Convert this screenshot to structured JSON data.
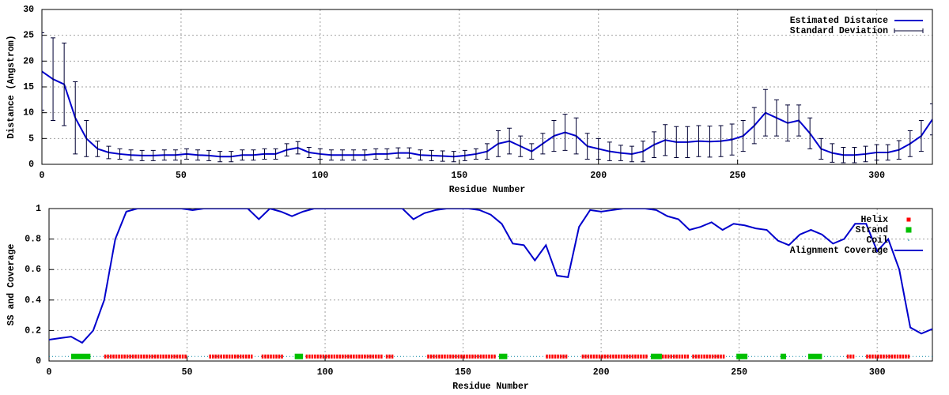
{
  "chart_data": [
    {
      "type": "line",
      "xlabel": "Residue Number",
      "ylabel": "Distance (Angstrom)",
      "xlim": [
        0,
        320
      ],
      "ylim": [
        0,
        30
      ],
      "xticks": [
        0,
        50,
        100,
        150,
        200,
        250,
        300
      ],
      "yticks": [
        0,
        5,
        10,
        15,
        20,
        25,
        30
      ],
      "grid": true,
      "legend": "top right",
      "x": [
        0,
        4,
        8,
        12,
        16,
        20,
        24,
        28,
        32,
        36,
        40,
        44,
        48,
        52,
        56,
        60,
        64,
        68,
        72,
        76,
        80,
        84,
        88,
        92,
        96,
        100,
        104,
        108,
        112,
        116,
        120,
        124,
        128,
        132,
        136,
        140,
        144,
        148,
        152,
        156,
        160,
        164,
        168,
        172,
        176,
        180,
        184,
        188,
        192,
        196,
        200,
        204,
        208,
        212,
        216,
        220,
        224,
        228,
        232,
        236,
        240,
        244,
        248,
        252,
        256,
        260,
        264,
        268,
        272,
        276,
        280,
        284,
        288,
        292,
        296,
        300,
        304,
        308,
        312,
        316,
        320
      ],
      "series": [
        {
          "name": "Estimated Distance",
          "color": "#0000cc",
          "style": "line",
          "values": [
            18,
            16.5,
            15.5,
            9,
            5,
            3,
            2.3,
            2,
            1.8,
            1.7,
            1.7,
            1.8,
            1.8,
            2,
            1.8,
            1.7,
            1.5,
            1.5,
            1.8,
            1.8,
            2,
            2,
            2.8,
            3.2,
            2.3,
            2,
            1.8,
            1.8,
            1.8,
            1.8,
            2,
            2,
            2.2,
            2.2,
            1.8,
            1.7,
            1.6,
            1.5,
            1.7,
            2,
            2.5,
            4,
            4.5,
            3.5,
            2.5,
            4,
            5.5,
            6.2,
            5.5,
            3.5,
            3,
            2.5,
            2.2,
            2,
            2.5,
            3.8,
            4.7,
            4.3,
            4.3,
            4.5,
            4.4,
            4.5,
            4.8,
            5.5,
            7.5,
            10,
            9,
            8,
            8.5,
            6,
            3,
            2.2,
            1.8,
            1.8,
            2,
            2.3,
            2.3,
            2.8,
            4,
            5.5,
            8.7
          ]
        },
        {
          "name": "Standard Deviation",
          "color": "#000033",
          "style": "errorbars",
          "values": [
            7.5,
            8,
            8,
            7,
            3.5,
            1.5,
            1.2,
            1,
            1,
            1,
            1,
            1,
            1,
            1,
            1,
            1,
            1,
            1,
            1,
            1,
            1,
            1,
            1.2,
            1.2,
            1,
            1,
            1,
            1,
            1,
            1,
            1,
            1,
            1,
            1,
            1,
            1,
            1,
            1,
            1,
            1,
            1.5,
            2.5,
            2.5,
            2,
            1.5,
            2,
            3,
            3.5,
            3.5,
            2.5,
            2,
            1.8,
            1.5,
            1.5,
            2,
            2.5,
            3,
            3,
            3,
            3,
            3,
            3,
            3,
            3,
            3.5,
            4.5,
            3.5,
            3.5,
            3,
            3,
            2,
            1.8,
            1.5,
            1.5,
            1.5,
            1.5,
            1.5,
            1.8,
            2.5,
            3,
            3
          ]
        }
      ]
    },
    {
      "type": "line",
      "xlabel": "Residue Number",
      "ylabel": "SS and Coverage",
      "xlim": [
        0,
        320
      ],
      "ylim": [
        0,
        1
      ],
      "xticks": [
        0,
        50,
        100,
        150,
        200,
        250,
        300
      ],
      "yticks": [
        0,
        0.2,
        0.4,
        0.6,
        0.8,
        1
      ],
      "grid": true,
      "legend": "top right",
      "x": [
        0,
        4,
        8,
        12,
        16,
        20,
        24,
        28,
        32,
        36,
        40,
        44,
        48,
        52,
        56,
        60,
        64,
        68,
        72,
        76,
        80,
        84,
        88,
        92,
        96,
        100,
        104,
        108,
        112,
        116,
        120,
        124,
        128,
        132,
        136,
        140,
        144,
        148,
        152,
        156,
        160,
        164,
        168,
        172,
        176,
        180,
        184,
        188,
        192,
        196,
        200,
        204,
        208,
        212,
        216,
        220,
        224,
        228,
        232,
        236,
        240,
        244,
        248,
        252,
        256,
        260,
        264,
        268,
        272,
        276,
        280,
        284,
        288,
        292,
        296,
        300,
        304,
        308,
        312,
        316,
        320
      ],
      "series": [
        {
          "name": "Helix",
          "color": "#ff0000",
          "style": "points",
          "level": 0.03,
          "ranges": [
            [
              20,
              50
            ],
            [
              58,
              74
            ],
            [
              77,
              85
            ],
            [
              93,
              121
            ],
            [
              122,
              125
            ],
            [
              137,
              162
            ],
            [
              180,
              188
            ],
            [
              193,
              217
            ],
            [
              220,
              232
            ],
            [
              233,
              245
            ],
            [
              289,
              292
            ],
            [
              296,
              312
            ]
          ]
        },
        {
          "name": "Strand",
          "color": "#00c000",
          "style": "squares",
          "level": 0.03,
          "ranges": [
            [
              8,
              15
            ],
            [
              89,
              92
            ],
            [
              163,
              166
            ],
            [
              218,
              222
            ],
            [
              249,
              253
            ],
            [
              265,
              267
            ],
            [
              275,
              280
            ]
          ]
        },
        {
          "name": "Coil",
          "color": "#0080a0",
          "style": "dots",
          "level": 0.03,
          "ranges": [
            [
              0,
              320
            ]
          ]
        },
        {
          "name": "Alignment Coverage",
          "color": "#0000cc",
          "style": "line",
          "values": [
            0.14,
            0.15,
            0.16,
            0.12,
            0.2,
            0.4,
            0.8,
            0.98,
            1,
            1,
            1,
            1,
            1,
            0.99,
            1,
            1,
            1,
            1,
            1,
            0.93,
            1,
            0.98,
            0.95,
            0.98,
            1,
            1,
            1,
            1,
            1,
            1,
            1,
            1,
            1,
            0.93,
            0.97,
            0.99,
            1,
            1,
            1,
            0.99,
            0.96,
            0.9,
            0.77,
            0.76,
            0.66,
            0.76,
            0.56,
            0.55,
            0.88,
            0.99,
            0.98,
            0.99,
            1,
            1,
            1,
            0.99,
            0.95,
            0.93,
            0.86,
            0.88,
            0.91,
            0.86,
            0.9,
            0.89,
            0.87,
            0.86,
            0.79,
            0.76,
            0.83,
            0.86,
            0.83,
            0.77,
            0.8,
            0.9,
            0.9,
            0.72,
            0.8,
            0.6,
            0.22,
            0.18,
            0.21
          ]
        }
      ]
    }
  ]
}
